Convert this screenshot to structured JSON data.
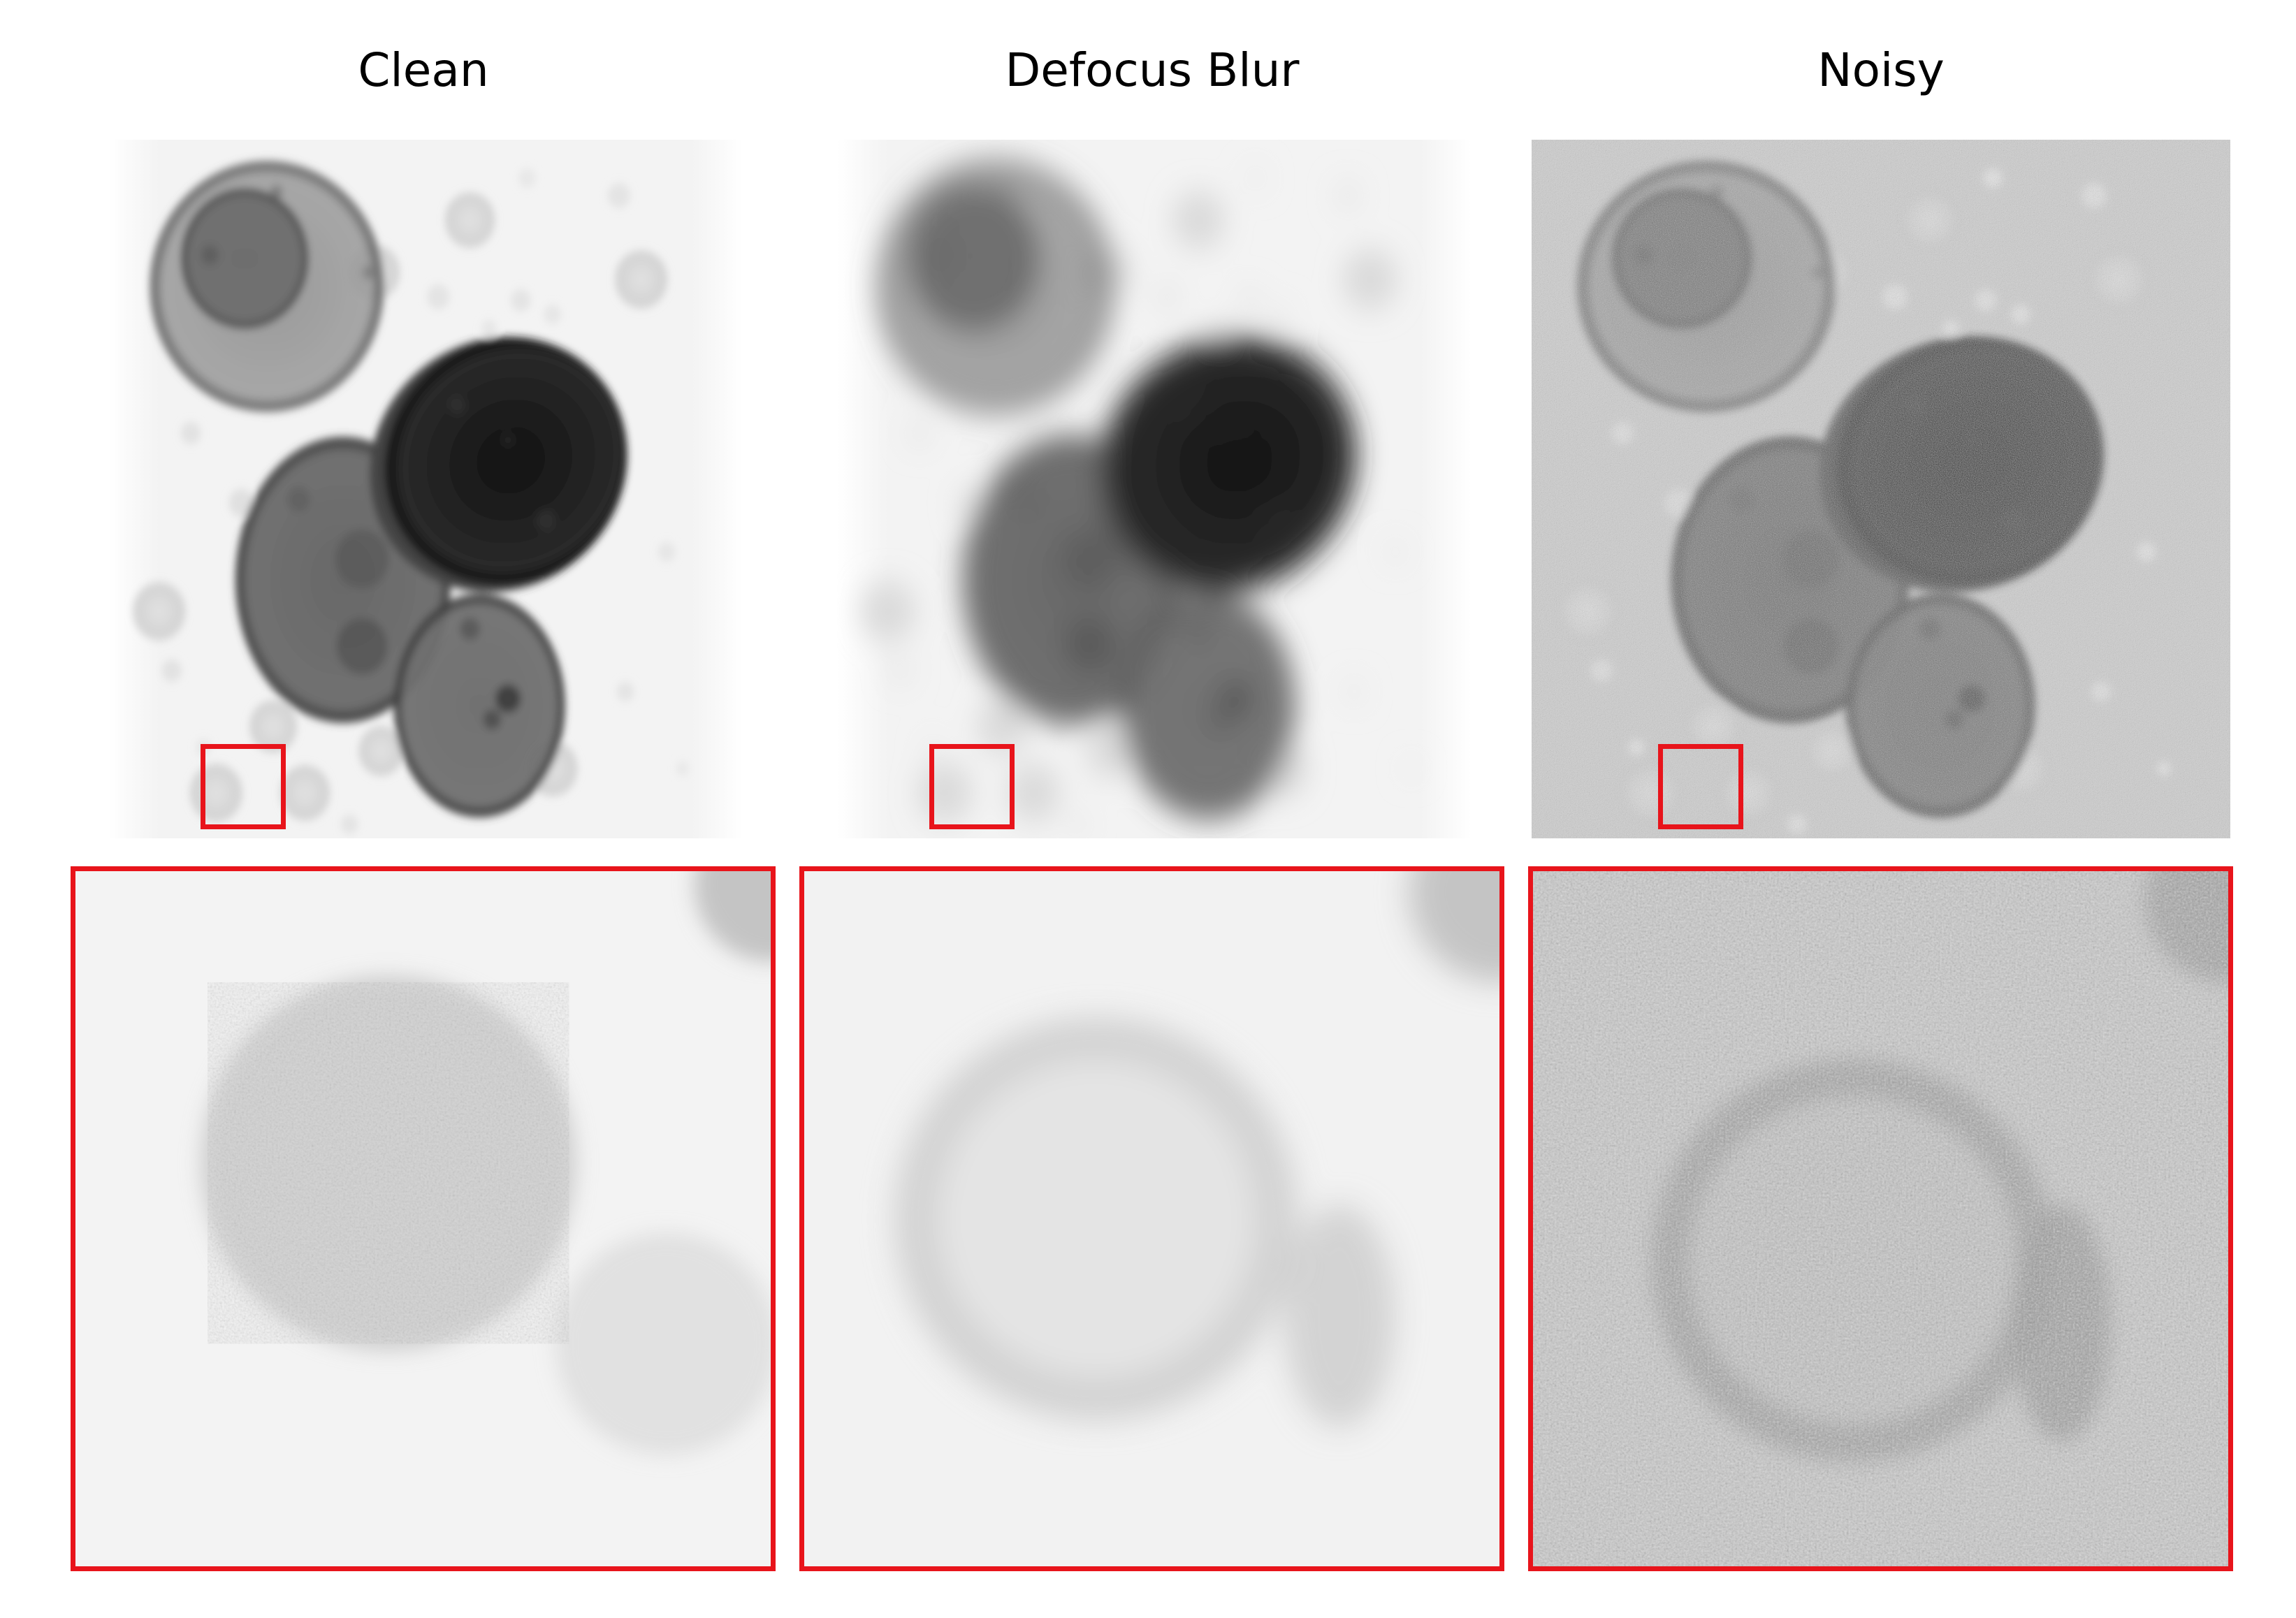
{
  "figure": {
    "columns": [
      {
        "id": "clean",
        "title": "Clean"
      },
      {
        "id": "defocus",
        "title": "Defocus Blur"
      },
      {
        "id": "noisy",
        "title": "Noisy"
      }
    ]
  },
  "colors": {
    "highlight_box": "#e8141b",
    "clean_background": "#f4f4f4",
    "noisy_background": "#cfcfcf",
    "particle_dark": "#0a0a0a"
  }
}
